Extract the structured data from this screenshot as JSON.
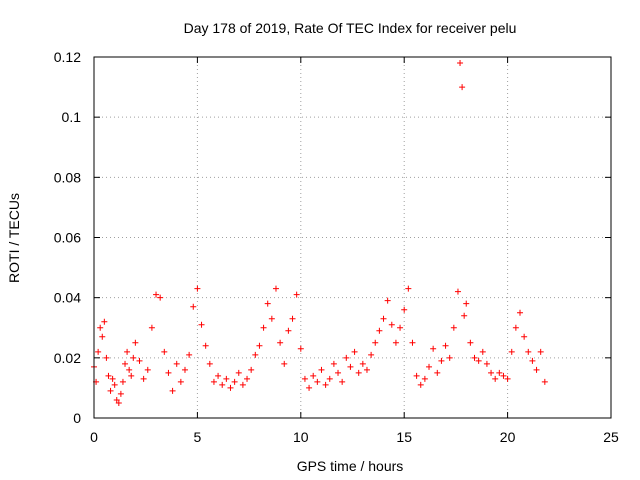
{
  "chart_data": {
    "type": "scatter",
    "title": "Day 178 of 2019, Rate Of TEC Index for receiver pelu",
    "xlabel": "GPS time / hours",
    "ylabel": "ROTI / TECUs",
    "xlim": [
      0,
      25
    ],
    "ylim": [
      0,
      0.12
    ],
    "x_ticks": [
      0,
      5,
      10,
      15,
      20,
      25
    ],
    "x_tick_labels": [
      "0",
      "5",
      "10",
      "15",
      "20",
      "25"
    ],
    "y_ticks": [
      0,
      0.02,
      0.04,
      0.06,
      0.08,
      0.1,
      0.12
    ],
    "y_tick_labels": [
      "0",
      "0.02",
      "0.04",
      "0.06",
      "0.08",
      "0.1",
      "0.12"
    ],
    "grid": true,
    "marker": "+",
    "color": "#ff0000",
    "series": [
      {
        "name": "ROTI",
        "points": [
          [
            0.0,
            0.017
          ],
          [
            0.1,
            0.012
          ],
          [
            0.2,
            0.022
          ],
          [
            0.3,
            0.03
          ],
          [
            0.4,
            0.027
          ],
          [
            0.5,
            0.032
          ],
          [
            0.6,
            0.02
          ],
          [
            0.7,
            0.014
          ],
          [
            0.8,
            0.009
          ],
          [
            0.9,
            0.013
          ],
          [
            1.0,
            0.011
          ],
          [
            1.1,
            0.006
          ],
          [
            1.2,
            0.005
          ],
          [
            1.3,
            0.008
          ],
          [
            1.4,
            0.012
          ],
          [
            1.5,
            0.018
          ],
          [
            1.6,
            0.022
          ],
          [
            1.7,
            0.016
          ],
          [
            1.8,
            0.014
          ],
          [
            1.9,
            0.02
          ],
          [
            2.0,
            0.025
          ],
          [
            2.2,
            0.019
          ],
          [
            2.4,
            0.013
          ],
          [
            2.6,
            0.016
          ],
          [
            2.8,
            0.03
          ],
          [
            3.0,
            0.041
          ],
          [
            3.2,
            0.04
          ],
          [
            3.4,
            0.022
          ],
          [
            3.6,
            0.015
          ],
          [
            3.8,
            0.009
          ],
          [
            4.0,
            0.018
          ],
          [
            4.2,
            0.012
          ],
          [
            4.4,
            0.016
          ],
          [
            4.6,
            0.021
          ],
          [
            4.8,
            0.037
          ],
          [
            5.0,
            0.043
          ],
          [
            5.2,
            0.031
          ],
          [
            5.4,
            0.024
          ],
          [
            5.6,
            0.018
          ],
          [
            5.8,
            0.012
          ],
          [
            6.0,
            0.014
          ],
          [
            6.2,
            0.011
          ],
          [
            6.4,
            0.013
          ],
          [
            6.6,
            0.01
          ],
          [
            6.8,
            0.012
          ],
          [
            7.0,
            0.015
          ],
          [
            7.2,
            0.011
          ],
          [
            7.4,
            0.013
          ],
          [
            7.6,
            0.016
          ],
          [
            7.8,
            0.021
          ],
          [
            8.0,
            0.024
          ],
          [
            8.2,
            0.03
          ],
          [
            8.4,
            0.038
          ],
          [
            8.6,
            0.033
          ],
          [
            8.8,
            0.043
          ],
          [
            9.0,
            0.025
          ],
          [
            9.2,
            0.018
          ],
          [
            9.4,
            0.029
          ],
          [
            9.6,
            0.033
          ],
          [
            9.8,
            0.041
          ],
          [
            10.0,
            0.023
          ],
          [
            10.2,
            0.013
          ],
          [
            10.4,
            0.01
          ],
          [
            10.6,
            0.014
          ],
          [
            10.8,
            0.012
          ],
          [
            11.0,
            0.016
          ],
          [
            11.2,
            0.011
          ],
          [
            11.4,
            0.013
          ],
          [
            11.6,
            0.018
          ],
          [
            11.8,
            0.015
          ],
          [
            12.0,
            0.012
          ],
          [
            12.2,
            0.02
          ],
          [
            12.4,
            0.017
          ],
          [
            12.6,
            0.022
          ],
          [
            12.8,
            0.015
          ],
          [
            13.0,
            0.018
          ],
          [
            13.2,
            0.016
          ],
          [
            13.4,
            0.021
          ],
          [
            13.6,
            0.025
          ],
          [
            13.8,
            0.029
          ],
          [
            14.0,
            0.033
          ],
          [
            14.2,
            0.039
          ],
          [
            14.4,
            0.031
          ],
          [
            14.6,
            0.025
          ],
          [
            14.8,
            0.03
          ],
          [
            15.0,
            0.036
          ],
          [
            15.2,
            0.043
          ],
          [
            15.4,
            0.025
          ],
          [
            15.6,
            0.014
          ],
          [
            15.8,
            0.011
          ],
          [
            16.0,
            0.013
          ],
          [
            16.2,
            0.017
          ],
          [
            16.4,
            0.023
          ],
          [
            16.6,
            0.015
          ],
          [
            16.8,
            0.019
          ],
          [
            17.0,
            0.024
          ],
          [
            17.2,
            0.02
          ],
          [
            17.4,
            0.03
          ],
          [
            17.6,
            0.042
          ],
          [
            17.7,
            0.118
          ],
          [
            17.8,
            0.11
          ],
          [
            17.9,
            0.034
          ],
          [
            18.0,
            0.038
          ],
          [
            18.2,
            0.025
          ],
          [
            18.4,
            0.02
          ],
          [
            18.6,
            0.019
          ],
          [
            18.8,
            0.022
          ],
          [
            19.0,
            0.018
          ],
          [
            19.2,
            0.015
          ],
          [
            19.4,
            0.013
          ],
          [
            19.6,
            0.015
          ],
          [
            19.8,
            0.014
          ],
          [
            20.0,
            0.013
          ],
          [
            20.2,
            0.022
          ],
          [
            20.4,
            0.03
          ],
          [
            20.6,
            0.035
          ],
          [
            20.8,
            0.027
          ],
          [
            21.0,
            0.022
          ],
          [
            21.2,
            0.019
          ],
          [
            21.4,
            0.016
          ],
          [
            21.6,
            0.022
          ],
          [
            21.8,
            0.012
          ]
        ]
      }
    ]
  }
}
